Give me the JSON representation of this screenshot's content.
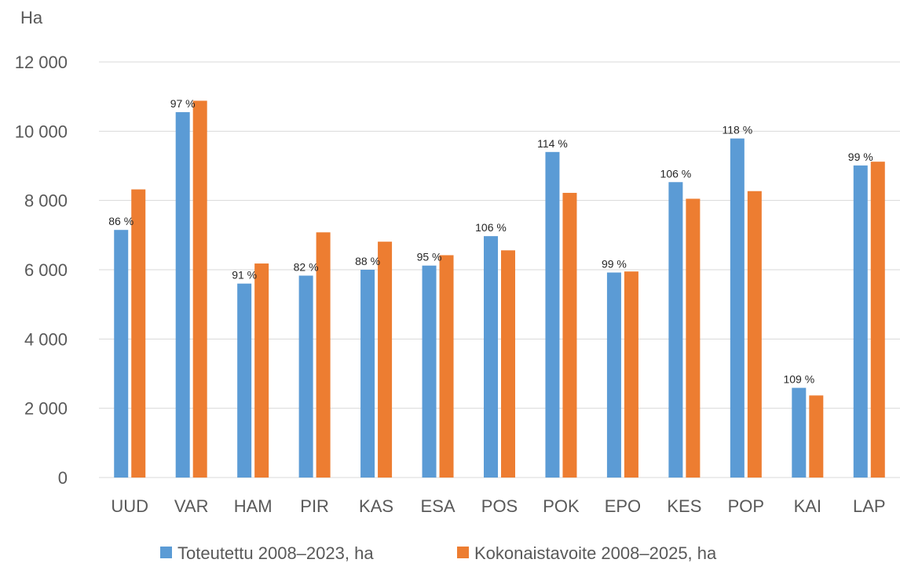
{
  "chart_data": {
    "type": "bar",
    "ylabel": "Ha",
    "xlabel": "",
    "ylim": [
      0,
      12000
    ],
    "yticks": [
      0,
      2000,
      4000,
      6000,
      8000,
      10000,
      12000
    ],
    "ytick_labels": [
      "0",
      "2 000",
      "4 000",
      "6 000",
      "8 000",
      "10 000",
      "12 000"
    ],
    "grid": true,
    "legend_position": "bottom",
    "categories": [
      "UUD",
      "VAR",
      "HAM",
      "PIR",
      "KAS",
      "ESA",
      "POS",
      "POK",
      "EPO",
      "KES",
      "POP",
      "KAI",
      "LAP"
    ],
    "series": [
      {
        "name": "Toteutettu 2008–2023, ha",
        "color": "#5b9bd5",
        "values": [
          7150,
          10550,
          5600,
          5830,
          6000,
          6120,
          6970,
          9400,
          5920,
          8530,
          9790,
          2590,
          9010
        ]
      },
      {
        "name": "Kokonaistavoite 2008–2025, ha",
        "color": "#ed7d31",
        "values": [
          8320,
          10880,
          6180,
          7080,
          6810,
          6420,
          6560,
          8220,
          5950,
          8050,
          8270,
          2370,
          9120
        ]
      }
    ],
    "data_labels": [
      "86 %",
      "97 %",
      "91 %",
      "82 %",
      "88 %",
      "95 %",
      "106 %",
      "114 %",
      "99 %",
      "106 %",
      "118 %",
      "109 %",
      "99 %"
    ]
  }
}
